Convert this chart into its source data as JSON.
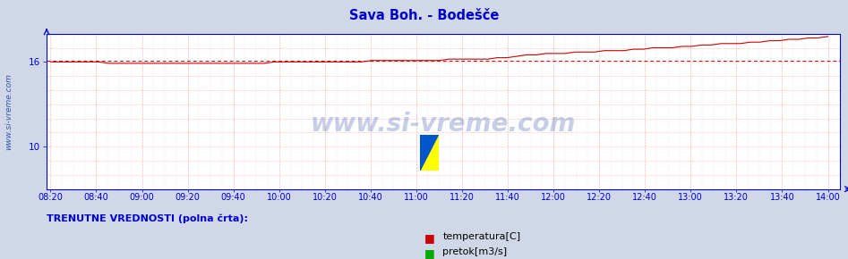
{
  "title": "Sava Boh. - Bodešče",
  "title_color": "#0000cc",
  "bg_color": "#d0d8e8",
  "plot_bg_color": "#ffffff",
  "axis_color": "#0000cc",
  "temp_line_color": "#cc0000",
  "avg_line_color": "#cc0000",
  "pretok_line_color": "#00aa00",
  "watermark_text": "www.si-vreme.com",
  "watermark_color": "#3355aa",
  "sidebar_text": "www.si-vreme.com",
  "sidebar_color": "#3355aa",
  "legend_label1": "temperatura[C]",
  "legend_label2": "pretok[m3/s]",
  "bottom_label": "TRENUTNE VREDNOSTI (polna črta):",
  "ylim": [
    7.0,
    18.0
  ],
  "yticks": [
    10,
    16
  ],
  "avg_value": 16.1,
  "x_labels": [
    "08:20",
    "08:40",
    "09:00",
    "09:20",
    "09:40",
    "10:00",
    "10:20",
    "10:40",
    "11:00",
    "11:20",
    "11:40",
    "12:00",
    "12:20",
    "12:40",
    "13:00",
    "13:20",
    "13:40",
    "14:00"
  ],
  "temp_data_y": [
    16.0,
    16.0,
    16.0,
    16.0,
    16.0,
    16.0,
    15.9,
    15.9,
    15.9,
    15.9,
    15.9,
    15.9,
    15.9,
    15.9,
    15.9,
    15.9,
    15.9,
    15.9,
    15.9,
    15.9,
    15.9,
    15.9,
    15.9,
    16.0,
    16.0,
    16.0,
    16.0,
    16.0,
    16.0,
    16.0,
    16.0,
    16.0,
    16.0,
    16.1,
    16.1,
    16.1,
    16.1,
    16.1,
    16.1,
    16.1,
    16.1,
    16.2,
    16.2,
    16.2,
    16.2,
    16.2,
    16.3,
    16.3,
    16.4,
    16.5,
    16.5,
    16.6,
    16.6,
    16.6,
    16.7,
    16.7,
    16.7,
    16.8,
    16.8,
    16.8,
    16.9,
    16.9,
    17.0,
    17.0,
    17.0,
    17.1,
    17.1,
    17.2,
    17.2,
    17.3,
    17.3,
    17.3,
    17.4,
    17.4,
    17.5,
    17.5,
    17.6,
    17.6,
    17.7,
    17.7,
    17.8
  ]
}
